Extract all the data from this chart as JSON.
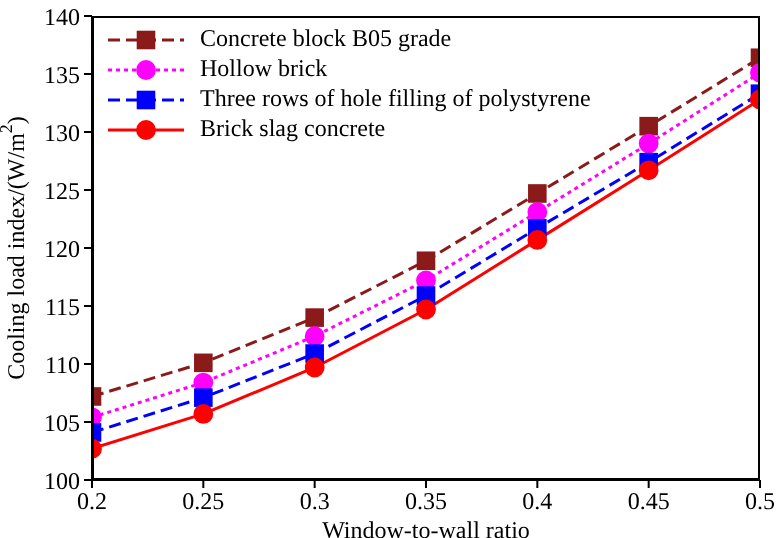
{
  "chart_data": {
    "type": "line",
    "xlabel": "Window-to-wall ratio",
    "ylabel": "Cooling load index/(W/m$^{2}$)",
    "x": [
      0.2,
      0.25,
      0.3,
      0.35,
      0.4,
      0.45,
      0.5
    ],
    "xlim": [
      0.2,
      0.5
    ],
    "xticks": [
      0.2,
      0.25,
      0.3,
      0.35,
      0.4,
      0.45,
      0.5
    ],
    "ylim": [
      100,
      140
    ],
    "yticks": [
      100,
      105,
      110,
      115,
      120,
      125,
      130,
      135,
      140
    ],
    "grid": false,
    "legend": "top left",
    "series": [
      {
        "name": "Concrete block B05 grade",
        "color": "#8b1a1a",
        "marker": "square",
        "line_style": "dashed",
        "values": [
          107.2,
          110.1,
          114.0,
          118.9,
          124.7,
          130.5,
          136.4
        ]
      },
      {
        "name": "Hollow brick",
        "color": "#ff00ff",
        "marker": "circle",
        "line_style": "dotted",
        "values": [
          105.4,
          108.4,
          112.4,
          117.2,
          123.1,
          129.0,
          135.1
        ]
      },
      {
        "name": "Three rows of hole filling of polystyrene",
        "color": "#0000ff",
        "marker": "square",
        "line_style": "dashed",
        "values": [
          104.1,
          107.1,
          110.9,
          115.9,
          121.7,
          127.4,
          133.3
        ]
      },
      {
        "name": "Brick slag concrete",
        "color": "#ff0000",
        "marker": "circle",
        "line_style": "solid",
        "values": [
          102.7,
          105.7,
          109.7,
          114.7,
          120.7,
          126.7,
          132.8
        ]
      }
    ]
  }
}
